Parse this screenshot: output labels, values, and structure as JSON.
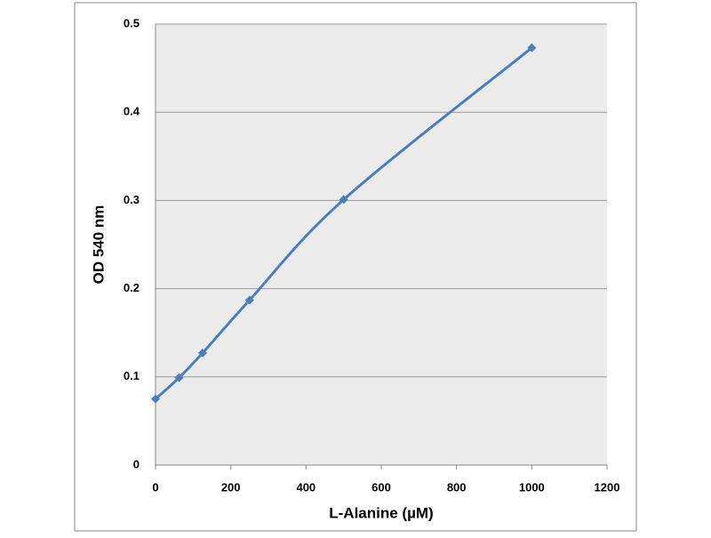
{
  "chart_data": {
    "type": "line",
    "x_label": "L-Alanine (µM)",
    "y_label": "OD 540 nm",
    "x": [
      0,
      62.5,
      125,
      250,
      500,
      1000
    ],
    "series": [
      {
        "name": "OD 540 nm",
        "color": "#4a7ebb",
        "values": [
          0.075,
          0.099,
          0.127,
          0.187,
          0.301,
          0.473
        ]
      }
    ],
    "xlim": [
      0,
      1200
    ],
    "xticks": [
      0,
      200,
      400,
      600,
      800,
      1000,
      1200
    ],
    "ylim": [
      0,
      0.5
    ],
    "yticks": [
      0,
      0.1,
      0.2,
      0.3,
      0.4,
      0.5
    ],
    "grid": true,
    "smooth": true
  }
}
